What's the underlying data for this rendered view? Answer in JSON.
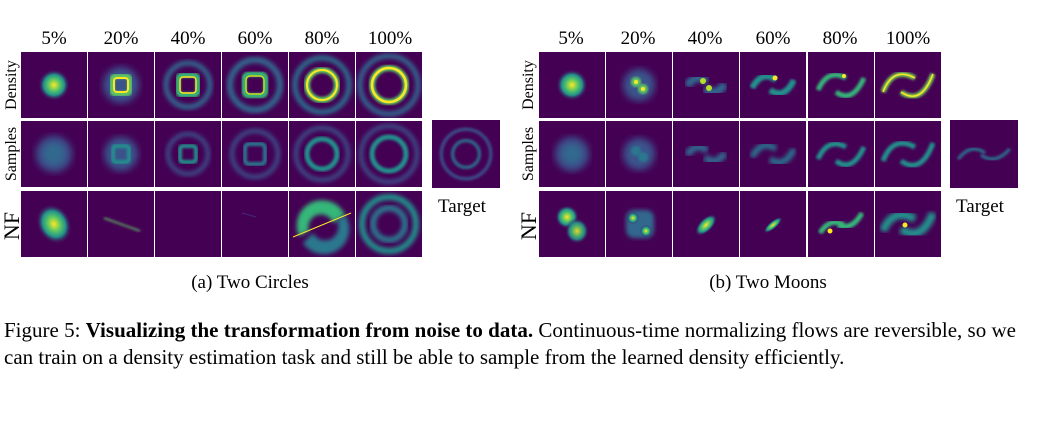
{
  "figure": {
    "percent_labels": [
      "5%",
      "20%",
      "40%",
      "60%",
      "80%",
      "100%"
    ],
    "row_labels": {
      "density": "Density",
      "samples": "Samples",
      "nf": "NF"
    },
    "target_label": "Target",
    "panels": [
      {
        "subcaption": "(a) Two Circles",
        "dataset": "two-circles"
      },
      {
        "subcaption": "(b) Two Moons",
        "dataset": "two-moons"
      }
    ],
    "colors": {
      "background": "#440154",
      "mid": "#21918c",
      "high": "#fde725"
    }
  },
  "caption": {
    "prefix": "Figure 5:",
    "title": "Visualizing the transformation from noise to data.",
    "body": "Continuous-time normalizing flows are reversible, so we can train on a density estimation task and still be able to sample from the learned density efficiently."
  }
}
